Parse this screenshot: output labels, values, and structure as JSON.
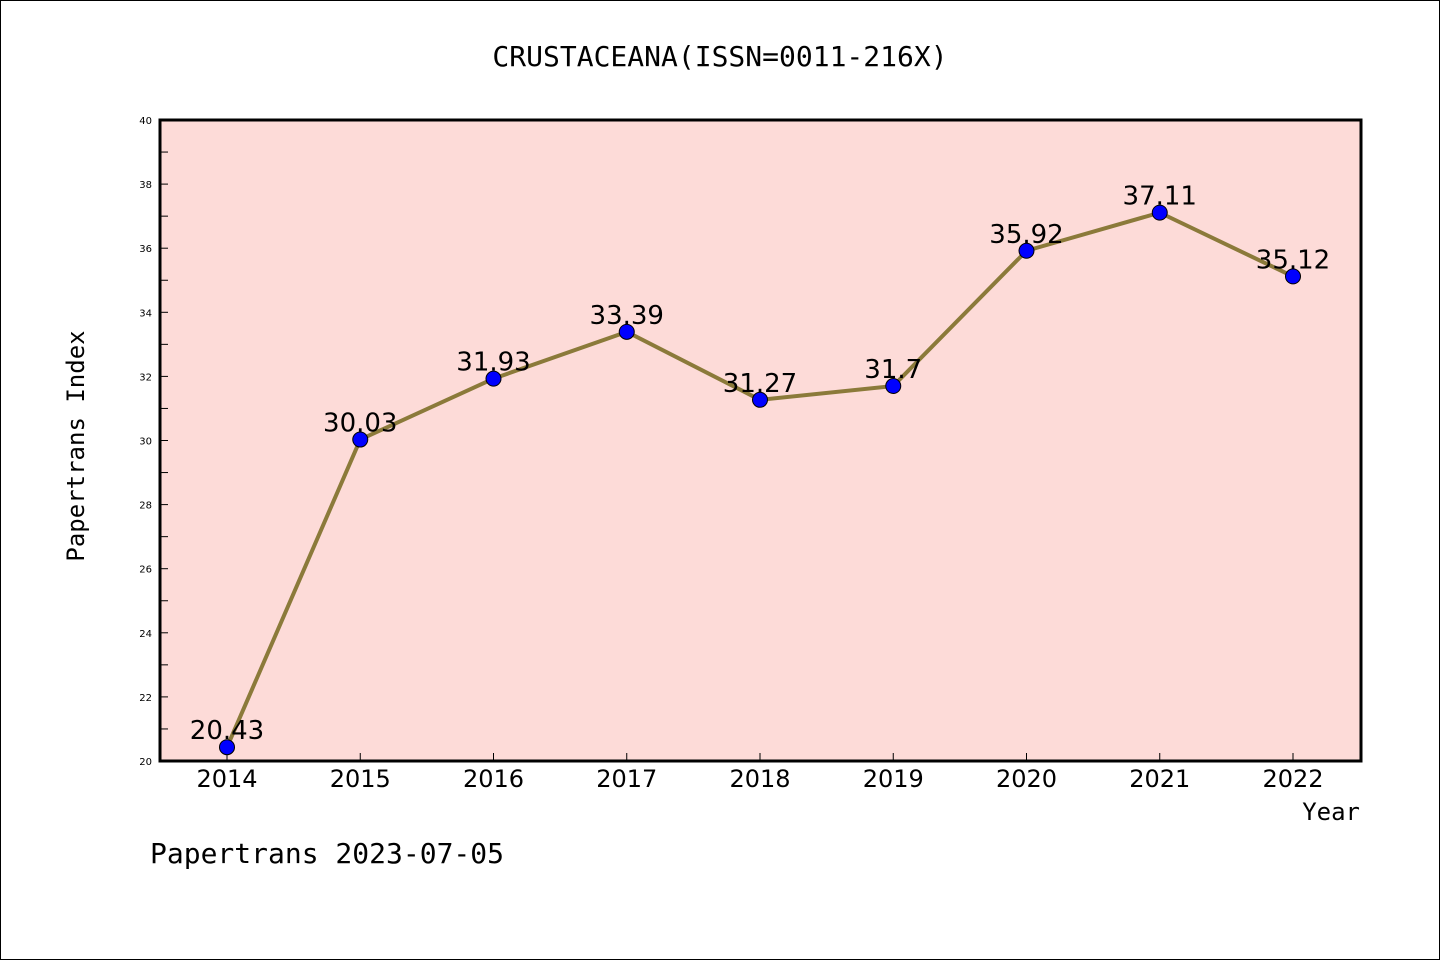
{
  "chart_data": {
    "type": "line",
    "title": "CRUSTACEANA(ISSN=0011-216X)",
    "xlabel": "Year",
    "ylabel": "Papertrans Index",
    "categories": [
      "2014",
      "2015",
      "2016",
      "2017",
      "2018",
      "2019",
      "2020",
      "2021",
      "2022"
    ],
    "values": [
      20.43,
      30.03,
      31.93,
      33.39,
      31.27,
      31.7,
      35.92,
      37.11,
      35.12
    ],
    "value_labels": [
      "20.43",
      "30.03",
      "31.93",
      "33.39",
      "31.27",
      "31.7",
      "35.92",
      "37.11",
      "35.12"
    ],
    "ylim": [
      20,
      40
    ],
    "yticks": [
      "20",
      "22",
      "24",
      "26",
      "28",
      "30",
      "32",
      "34",
      "36",
      "38",
      "40"
    ],
    "grid": false,
    "colors": {
      "plot_background": "#fddbd8",
      "line": "#8b7a3a",
      "marker": "#0000ff"
    }
  },
  "footer": "Papertrans 2023-07-05"
}
